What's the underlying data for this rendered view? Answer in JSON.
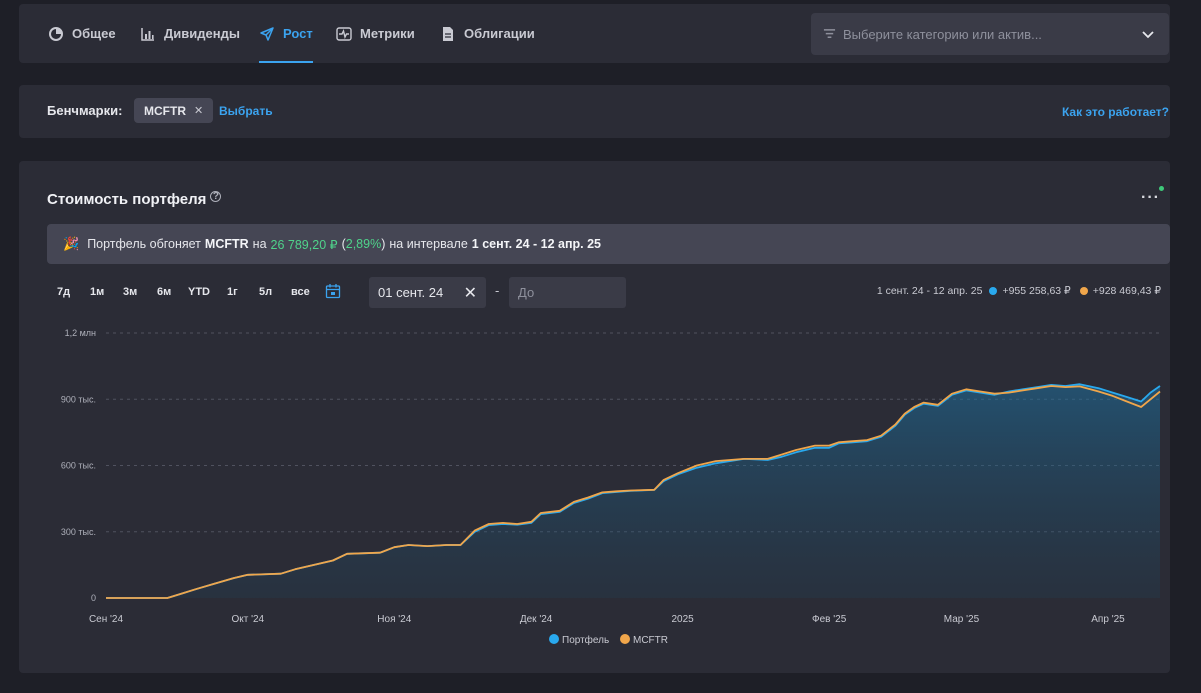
{
  "nav": {
    "tabs": [
      {
        "label": "Общее",
        "icon": "pie-icon"
      },
      {
        "label": "Дивиденды",
        "icon": "bar-chart-icon"
      },
      {
        "label": "Рост",
        "icon": "rocket-icon"
      },
      {
        "label": "Метрики",
        "icon": "pulse-icon"
      },
      {
        "label": "Облигации",
        "icon": "document-icon"
      }
    ],
    "active_tab": "Рост",
    "category_placeholder": "Выберите категорию или актив..."
  },
  "benchmarks": {
    "label": "Бенчмарки:",
    "chip": "MCFTR",
    "choose_link": "Выбрать",
    "help_link": "Как это работает?"
  },
  "portfolio": {
    "title": "Стоимость портфеля",
    "banner": {
      "prefix": "Портфель обгоняет",
      "benchmark": "MCFTR",
      "on": "на",
      "amount": "26 789,20 ₽",
      "percent_open": "(",
      "percent": "2,89%",
      "percent_close": ")",
      "interval_text": "на интервале",
      "interval": "1 сент. 24 - 12 апр. 25"
    },
    "periods": [
      "7д",
      "1м",
      "3м",
      "6м",
      "YTD",
      "1г",
      "5л",
      "все"
    ],
    "date_from": "01 сент. 24",
    "date_to_placeholder": "До",
    "date_dash": "-",
    "range_label": "1 сент. 24 - 12 апр. 25",
    "portfolio_change": "+955 258,63 ₽",
    "benchmark_change": "+928 469,43 ₽"
  },
  "colors": {
    "accent": "#3ba3ef",
    "portfolio_line": "#29a9ee",
    "benchmark_line": "#f0a64b",
    "positive": "#4fd38b"
  },
  "chart_data": {
    "type": "line",
    "title": "Стоимость портфеля",
    "y_ticks": [
      {
        "value": 0,
        "label": "0"
      },
      {
        "value": 300000,
        "label": "300 тыс."
      },
      {
        "value": 600000,
        "label": "600 тыс."
      },
      {
        "value": 900000,
        "label": "900 тыс."
      },
      {
        "value": 1200000,
        "label": "1,2 млн"
      }
    ],
    "ylim": [
      0,
      1200000
    ],
    "x_range": [
      "2024-09-01",
      "2025-04-12"
    ],
    "x_ticks": [
      {
        "date": "2024-09-01",
        "label": "Сен '24"
      },
      {
        "date": "2024-10-01",
        "label": "Окт '24"
      },
      {
        "date": "2024-11-01",
        "label": "Ноя '24"
      },
      {
        "date": "2024-12-01",
        "label": "Дек '24"
      },
      {
        "date": "2025-01-01",
        "label": "2025"
      },
      {
        "date": "2025-02-01",
        "label": "Фев '25"
      },
      {
        "date": "2025-03-01",
        "label": "Мар '25"
      },
      {
        "date": "2025-04-01",
        "label": "Апр '25"
      }
    ],
    "grid": true,
    "legend_position": "bottom",
    "series": [
      {
        "name": "Портфель",
        "color": "#29a9ee",
        "area": true,
        "points": [
          [
            "2024-09-01",
            0
          ],
          [
            "2024-09-14",
            0
          ],
          [
            "2024-09-17",
            20000
          ],
          [
            "2024-09-20",
            40000
          ],
          [
            "2024-09-24",
            65000
          ],
          [
            "2024-09-28",
            90000
          ],
          [
            "2024-10-01",
            105000
          ],
          [
            "2024-10-08",
            110000
          ],
          [
            "2024-10-11",
            130000
          ],
          [
            "2024-10-15",
            150000
          ],
          [
            "2024-10-19",
            170000
          ],
          [
            "2024-10-22",
            200000
          ],
          [
            "2024-10-29",
            205000
          ],
          [
            "2024-11-01",
            230000
          ],
          [
            "2024-11-04",
            240000
          ],
          [
            "2024-11-08",
            235000
          ],
          [
            "2024-11-12",
            240000
          ],
          [
            "2024-11-15",
            240000
          ],
          [
            "2024-11-18",
            300000
          ],
          [
            "2024-11-21",
            330000
          ],
          [
            "2024-11-24",
            335000
          ],
          [
            "2024-11-27",
            332000
          ],
          [
            "2024-11-30",
            340000
          ],
          [
            "2024-12-02",
            380000
          ],
          [
            "2024-12-06",
            390000
          ],
          [
            "2024-12-09",
            430000
          ],
          [
            "2024-12-12",
            450000
          ],
          [
            "2024-12-15",
            475000
          ],
          [
            "2024-12-18",
            480000
          ],
          [
            "2024-12-21",
            485000
          ],
          [
            "2024-12-26",
            490000
          ],
          [
            "2024-12-28",
            530000
          ],
          [
            "2024-12-31",
            560000
          ],
          [
            "2025-01-04",
            590000
          ],
          [
            "2025-01-08",
            610000
          ],
          [
            "2025-01-11",
            620000
          ],
          [
            "2025-01-14",
            630000
          ],
          [
            "2025-01-19",
            625000
          ],
          [
            "2025-01-22",
            640000
          ],
          [
            "2025-01-25",
            660000
          ],
          [
            "2025-01-29",
            680000
          ],
          [
            "2025-02-01",
            680000
          ],
          [
            "2025-02-03",
            700000
          ],
          [
            "2025-02-06",
            705000
          ],
          [
            "2025-02-09",
            710000
          ],
          [
            "2025-02-12",
            730000
          ],
          [
            "2025-02-15",
            780000
          ],
          [
            "2025-02-17",
            830000
          ],
          [
            "2025-02-19",
            860000
          ],
          [
            "2025-02-21",
            880000
          ],
          [
            "2025-02-24",
            870000
          ],
          [
            "2025-02-27",
            920000
          ],
          [
            "2025-03-02",
            940000
          ],
          [
            "2025-03-05",
            930000
          ],
          [
            "2025-03-08",
            920000
          ],
          [
            "2025-03-11",
            935000
          ],
          [
            "2025-03-14",
            945000
          ],
          [
            "2025-03-17",
            955000
          ],
          [
            "2025-03-20",
            965000
          ],
          [
            "2025-03-23",
            960000
          ],
          [
            "2025-03-26",
            968000
          ],
          [
            "2025-03-30",
            950000
          ],
          [
            "2025-04-02",
            930000
          ],
          [
            "2025-04-05",
            910000
          ],
          [
            "2025-04-08",
            890000
          ],
          [
            "2025-04-10",
            930000
          ],
          [
            "2025-04-12",
            960000
          ]
        ]
      },
      {
        "name": "MCFTR",
        "color": "#f0a64b",
        "area": false,
        "points": [
          [
            "2024-09-01",
            0
          ],
          [
            "2024-09-14",
            0
          ],
          [
            "2024-09-17",
            20000
          ],
          [
            "2024-09-20",
            40000
          ],
          [
            "2024-09-24",
            65000
          ],
          [
            "2024-09-28",
            90000
          ],
          [
            "2024-10-01",
            105000
          ],
          [
            "2024-10-08",
            110000
          ],
          [
            "2024-10-11",
            130000
          ],
          [
            "2024-10-15",
            150000
          ],
          [
            "2024-10-19",
            170000
          ],
          [
            "2024-10-22",
            200000
          ],
          [
            "2024-10-29",
            205000
          ],
          [
            "2024-11-01",
            230000
          ],
          [
            "2024-11-04",
            240000
          ],
          [
            "2024-11-08",
            235000
          ],
          [
            "2024-11-12",
            240000
          ],
          [
            "2024-11-15",
            240000
          ],
          [
            "2024-11-18",
            305000
          ],
          [
            "2024-11-21",
            335000
          ],
          [
            "2024-11-24",
            340000
          ],
          [
            "2024-11-27",
            335000
          ],
          [
            "2024-11-30",
            345000
          ],
          [
            "2024-12-02",
            385000
          ],
          [
            "2024-12-06",
            395000
          ],
          [
            "2024-12-09",
            435000
          ],
          [
            "2024-12-12",
            455000
          ],
          [
            "2024-12-15",
            478000
          ],
          [
            "2024-12-18",
            483000
          ],
          [
            "2024-12-21",
            487000
          ],
          [
            "2024-12-26",
            490000
          ],
          [
            "2024-12-28",
            535000
          ],
          [
            "2024-12-31",
            565000
          ],
          [
            "2025-01-04",
            600000
          ],
          [
            "2025-01-08",
            620000
          ],
          [
            "2025-01-11",
            625000
          ],
          [
            "2025-01-14",
            630000
          ],
          [
            "2025-01-19",
            630000
          ],
          [
            "2025-01-22",
            650000
          ],
          [
            "2025-01-25",
            670000
          ],
          [
            "2025-01-29",
            690000
          ],
          [
            "2025-02-01",
            690000
          ],
          [
            "2025-02-03",
            705000
          ],
          [
            "2025-02-06",
            710000
          ],
          [
            "2025-02-09",
            715000
          ],
          [
            "2025-02-12",
            735000
          ],
          [
            "2025-02-15",
            785000
          ],
          [
            "2025-02-17",
            835000
          ],
          [
            "2025-02-19",
            865000
          ],
          [
            "2025-02-21",
            885000
          ],
          [
            "2025-02-24",
            875000
          ],
          [
            "2025-02-27",
            925000
          ],
          [
            "2025-03-02",
            945000
          ],
          [
            "2025-03-05",
            935000
          ],
          [
            "2025-03-08",
            925000
          ],
          [
            "2025-03-11",
            930000
          ],
          [
            "2025-03-14",
            940000
          ],
          [
            "2025-03-17",
            950000
          ],
          [
            "2025-03-20",
            960000
          ],
          [
            "2025-03-23",
            955000
          ],
          [
            "2025-03-26",
            958000
          ],
          [
            "2025-03-30",
            935000
          ],
          [
            "2025-04-02",
            915000
          ],
          [
            "2025-04-05",
            890000
          ],
          [
            "2025-04-08",
            865000
          ],
          [
            "2025-04-10",
            900000
          ],
          [
            "2025-04-12",
            935000
          ]
        ]
      }
    ]
  }
}
